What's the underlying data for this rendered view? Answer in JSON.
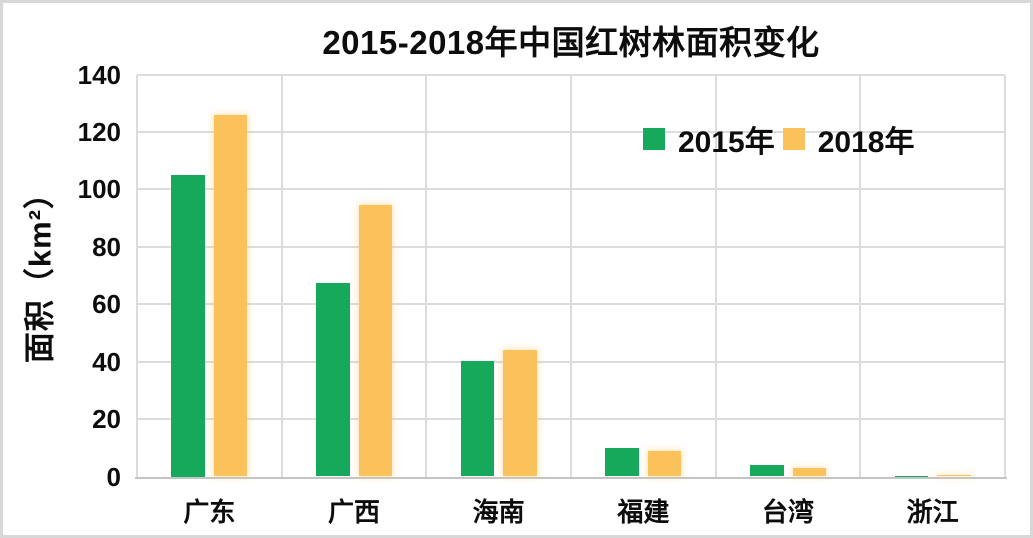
{
  "chart_data": {
    "type": "bar",
    "title": "2015-2018年中国红树林面积变化",
    "xlabel": "",
    "ylabel": "面积（km²）",
    "categories": [
      "广东",
      "广西",
      "海南",
      "福建",
      "台湾",
      "浙江"
    ],
    "series": [
      {
        "name": "2015年",
        "color": "#17A95B",
        "values": [
          105.0,
          67.5,
          40.3,
          9.8,
          3.9,
          0.2
        ]
      },
      {
        "name": "2018年",
        "color": "#FBC25C",
        "values": [
          125.9,
          94.4,
          44.0,
          8.9,
          2.9,
          0.6
        ]
      }
    ],
    "ylim": [
      0,
      140
    ],
    "ytick_step": 20,
    "yticks": [
      0,
      20,
      40,
      60,
      80,
      100,
      120,
      140
    ],
    "grid": true,
    "legend_position": "inside-top-right"
  },
  "colors": {
    "gridline": "#dcdcdc",
    "axis_line": "#c4c4c4",
    "text": "#0d0d0d",
    "frame_border": "#d8d8d8",
    "background": "#ffffff"
  }
}
